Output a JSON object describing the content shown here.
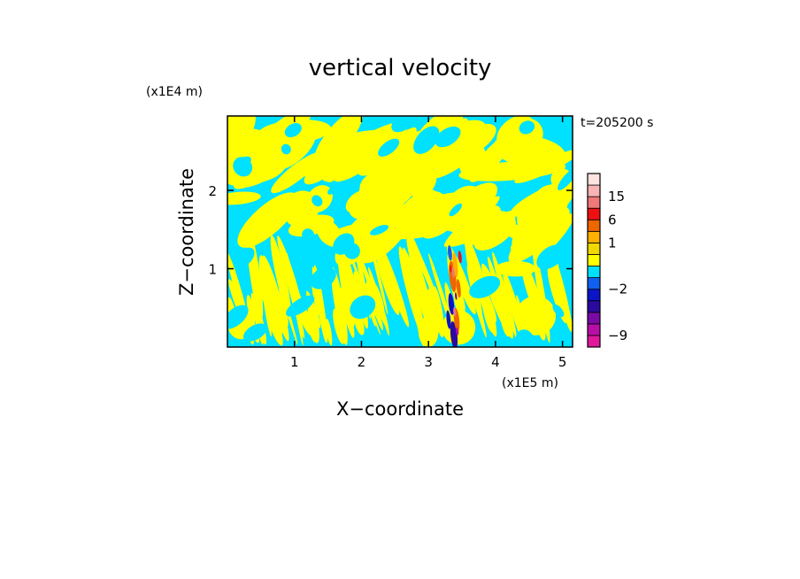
{
  "chart_data": {
    "type": "heatmap",
    "title": "vertical velocity",
    "xlabel": "X−coordinate",
    "ylabel": "Z−coordinate",
    "x_scale_label": "(x1E5 m)",
    "y_scale_label": "(x1E4 m)",
    "time_label": "t=205200 s",
    "xlim": [
      0,
      5.15
    ],
    "ylim": [
      0,
      2.95
    ],
    "x_ticks": [
      1,
      2,
      3,
      4,
      5
    ],
    "y_ticks": [
      1,
      2
    ],
    "x_tick_labels": [
      "1",
      "2",
      "3",
      "4",
      "5"
    ],
    "y_tick_labels": [
      "1",
      "2"
    ],
    "colorbar": {
      "levels": [
        {
          "min": -12,
          "max": -9,
          "color": "#e0189c"
        },
        {
          "min": -9,
          "max": -6,
          "color": "#b80ea8"
        },
        {
          "min": -6,
          "max": -4,
          "color": "#7a0aa6"
        },
        {
          "min": -4,
          "max": -3,
          "color": "#2a0aa0"
        },
        {
          "min": -3,
          "max": -2,
          "color": "#0a14c8"
        },
        {
          "min": -2,
          "max": -1,
          "color": "#1060f0"
        },
        {
          "min": -1,
          "max": 0,
          "color": "#00e0ff"
        },
        {
          "min": 0,
          "max": 0.5,
          "color": "#ffff00"
        },
        {
          "min": 0.5,
          "max": 1,
          "color": "#f0d800"
        },
        {
          "min": 1,
          "max": 3,
          "color": "#ffb000"
        },
        {
          "min": 3,
          "max": 6,
          "color": "#ee6600"
        },
        {
          "min": 6,
          "max": 10,
          "color": "#ee1010"
        },
        {
          "min": 10,
          "max": 15,
          "color": "#f07878"
        },
        {
          "min": 15,
          "max": 20,
          "color": "#f8b4b4"
        },
        {
          "min": 20,
          "max": 25,
          "color": "#fde4e0"
        }
      ],
      "labels": [
        {
          "value": 15,
          "text": "15"
        },
        {
          "value": 6,
          "text": "6"
        },
        {
          "value": 1,
          "text": "1"
        },
        {
          "value": -2,
          "text": "−2"
        },
        {
          "value": -9,
          "text": "−9"
        }
      ]
    }
  }
}
